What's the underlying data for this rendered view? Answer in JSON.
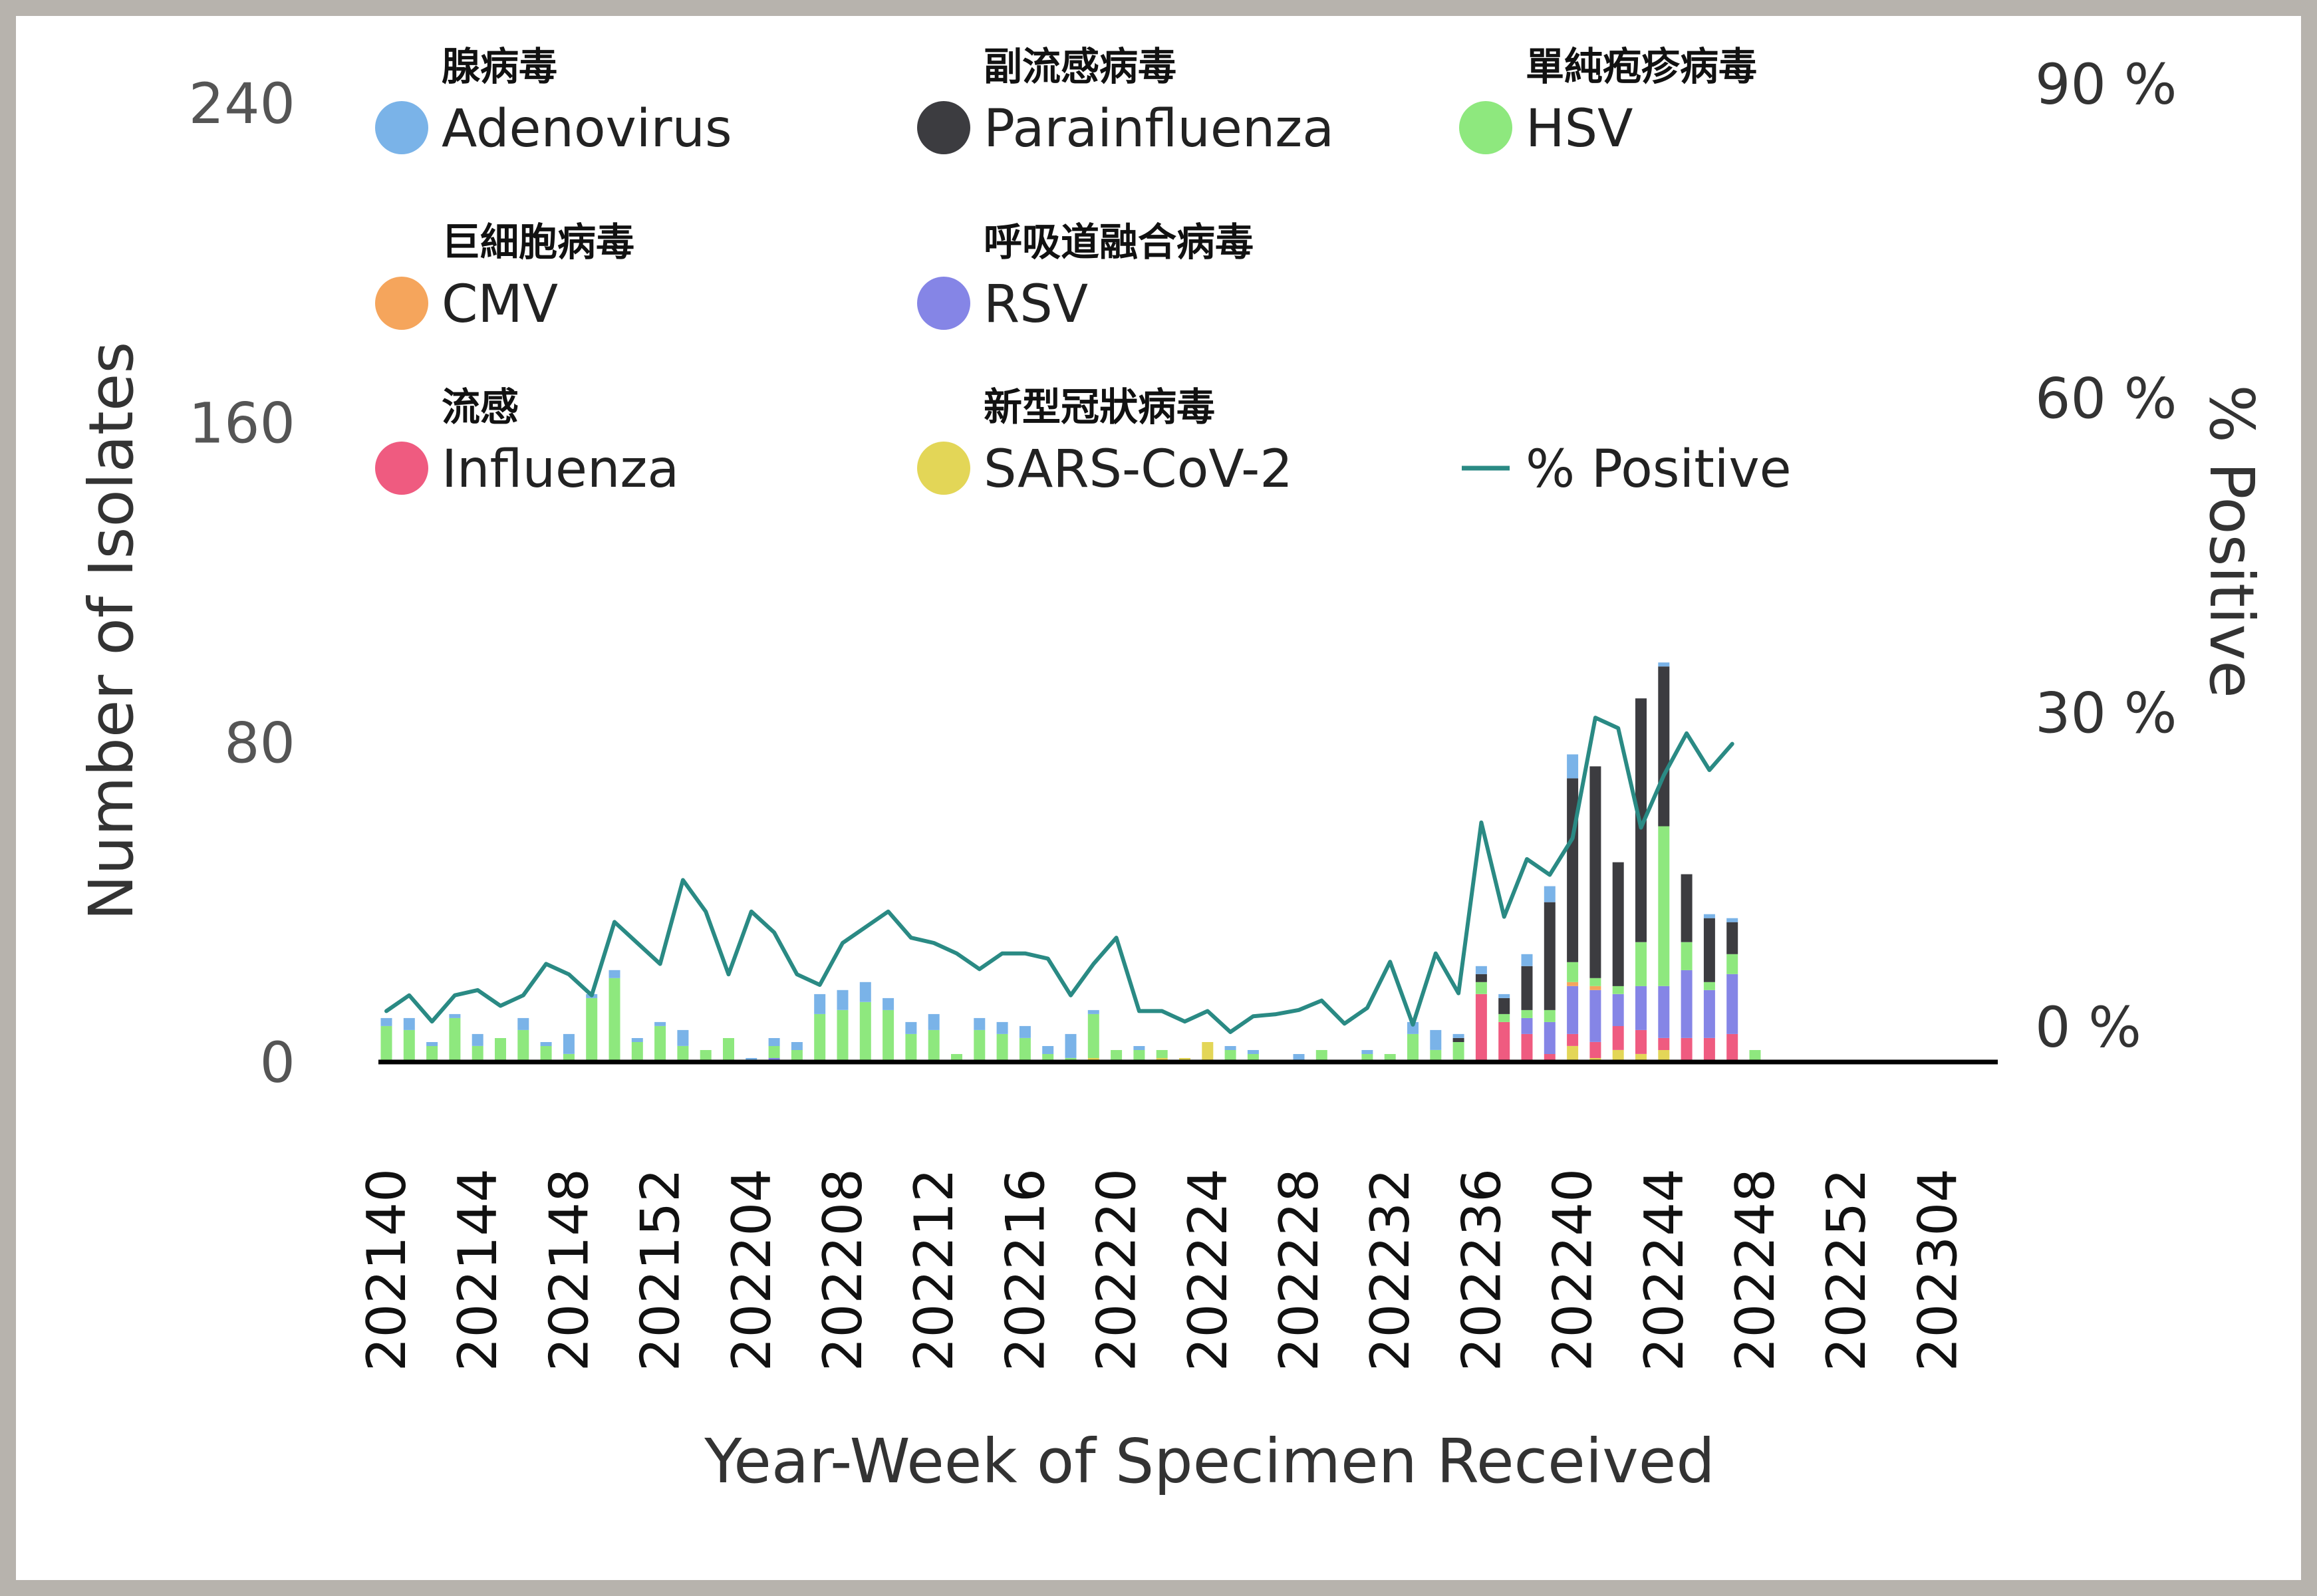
{
  "chart_data": {
    "type": "bar",
    "stacked": true,
    "xlabel": "Year-Week of Specimen Received",
    "ylabel": "Number of Isolates",
    "y2label": "% Positive",
    "ylim": [
      0,
      240
    ],
    "y2lim": [
      0,
      90
    ],
    "yticks": [
      "0",
      "80",
      "160",
      "240"
    ],
    "y2ticks": [
      "0 %",
      "30 %",
      "60 %",
      "90 %"
    ],
    "xticks": [
      "202140",
      "202144",
      "202148",
      "202152",
      "202204",
      "202208",
      "202212",
      "202216",
      "202220",
      "202224",
      "202228",
      "202232",
      "202236",
      "202240",
      "202244",
      "202248",
      "202252",
      "202304"
    ],
    "x": [
      "202140",
      "202141",
      "202142",
      "202143",
      "202144",
      "202145",
      "202146",
      "202147",
      "202148",
      "202149",
      "202150",
      "202151",
      "202152",
      "202201",
      "202202",
      "202203",
      "202204",
      "202205",
      "202206",
      "202207",
      "202208",
      "202209",
      "202210",
      "202211",
      "202212",
      "202213",
      "202214",
      "202215",
      "202216",
      "202217",
      "202218",
      "202219",
      "202220",
      "202221",
      "202222",
      "202223",
      "202224",
      "202225",
      "202226",
      "202227",
      "202228",
      "202229",
      "202230",
      "202231",
      "202232",
      "202233",
      "202234",
      "202235",
      "202236",
      "202237",
      "202238",
      "202239",
      "202240",
      "202241",
      "202242",
      "202243",
      "202244",
      "202245",
      "202246",
      "202247",
      "202248",
      "202249",
      "202250",
      "202251",
      "202252",
      "202301",
      "202302",
      "202303",
      "202304",
      "202305"
    ],
    "legend": [
      {
        "zh": "腺病毒",
        "en": "Adenovirus",
        "color": "#7ab3e8"
      },
      {
        "zh": "副流感病毒",
        "en": "Parainfluenza",
        "color": "#3c3c40"
      },
      {
        "zh": "單純疱疹病毒",
        "en": "HSV",
        "color": "#8ee87e"
      },
      {
        "zh": "巨細胞病毒",
        "en": "CMV",
        "color": "#f5a55c"
      },
      {
        "zh": "呼吸道融合病毒",
        "en": "RSV",
        "color": "#8585e6"
      },
      {
        "zh": "流感",
        "en": "Influenza",
        "color": "#ef5b80"
      },
      {
        "zh": "新型冠狀病毒",
        "en": "SARS-CoV-2",
        "color": "#e3d657"
      },
      {
        "zh": "",
        "en": "% Positive",
        "color": "#2a8a84"
      }
    ],
    "series": [
      {
        "name": "SARS-CoV-2",
        "color": "#e3d657",
        "values": [
          0,
          0,
          0,
          0,
          0,
          0,
          0,
          0,
          0,
          0,
          0,
          0,
          0,
          0,
          0,
          0,
          0,
          0,
          0,
          0,
          0,
          0,
          0,
          0,
          0,
          0,
          0,
          0,
          0,
          0,
          0,
          1,
          0,
          0,
          1,
          1,
          5,
          0,
          0,
          0,
          0,
          0,
          0,
          0,
          0,
          0,
          0,
          0,
          0,
          0,
          0,
          0,
          4,
          1,
          3,
          2,
          3,
          0,
          0,
          0,
          0,
          0,
          0,
          0,
          0,
          0,
          0,
          0,
          0,
          0
        ]
      },
      {
        "name": "Influenza",
        "color": "#ef5b80",
        "values": [
          0,
          0,
          0,
          0,
          0,
          0,
          0,
          0,
          0,
          0,
          0,
          0,
          0,
          0,
          0,
          0,
          0,
          0,
          0,
          0,
          0,
          0,
          0,
          0,
          0,
          0,
          0,
          0,
          0,
          0,
          0,
          0,
          0,
          0,
          0,
          0,
          0,
          0,
          0,
          0,
          0,
          0,
          0,
          0,
          0,
          0,
          0,
          0,
          17,
          10,
          7,
          2,
          3,
          4,
          6,
          6,
          3,
          6,
          6,
          7,
          0,
          0,
          0,
          0,
          0,
          0,
          0,
          0,
          0,
          0
        ]
      },
      {
        "name": "RSV",
        "color": "#8585e6",
        "values": [
          0,
          0,
          0,
          0,
          0,
          0,
          0,
          0,
          0,
          0,
          0,
          0,
          0,
          0,
          0,
          0,
          0,
          1,
          0,
          0,
          0,
          0,
          0,
          0,
          0,
          0,
          0,
          0,
          0,
          0,
          0,
          0,
          0,
          0,
          0,
          0,
          0,
          0,
          0,
          0,
          0,
          0,
          0,
          0,
          0,
          0,
          0,
          0,
          0,
          0,
          4,
          8,
          12,
          13,
          8,
          11,
          13,
          17,
          12,
          15,
          0,
          0,
          0,
          0,
          0,
          0,
          0,
          0,
          0,
          0
        ]
      },
      {
        "name": "CMV",
        "color": "#f5a55c",
        "values": [
          0,
          0,
          0,
          0,
          0,
          0,
          0,
          0,
          0,
          0,
          0,
          0,
          0,
          0,
          0,
          0,
          0,
          0,
          0,
          0,
          0,
          0,
          0,
          0,
          0,
          0,
          0,
          0,
          0,
          0,
          0,
          0,
          0,
          0,
          0,
          0,
          0,
          0,
          0,
          0,
          0,
          0,
          0,
          0,
          0,
          0,
          0,
          0,
          0,
          0,
          0,
          0,
          1,
          1,
          0,
          0,
          0,
          0,
          0,
          0,
          0,
          0,
          0,
          0,
          0,
          0,
          0,
          0,
          0,
          0
        ]
      },
      {
        "name": "HSV",
        "color": "#8ee87e",
        "values": [
          9,
          8,
          4,
          11,
          4,
          6,
          8,
          4,
          2,
          16,
          21,
          5,
          9,
          4,
          3,
          6,
          0,
          3,
          3,
          12,
          13,
          15,
          13,
          7,
          8,
          2,
          8,
          7,
          6,
          2,
          1,
          11,
          3,
          3,
          2,
          0,
          0,
          3,
          2,
          0,
          0,
          3,
          0,
          2,
          2,
          7,
          3,
          5,
          3,
          2,
          2,
          3,
          5,
          2,
          2,
          11,
          40,
          7,
          2,
          5,
          3,
          0,
          0,
          0,
          0,
          0,
          0,
          0,
          0,
          0
        ]
      },
      {
        "name": "Parainfluenza",
        "color": "#3c3c40",
        "values": [
          0,
          0,
          0,
          0,
          0,
          0,
          0,
          0,
          0,
          0,
          0,
          0,
          0,
          0,
          0,
          0,
          0,
          0,
          0,
          0,
          0,
          0,
          0,
          0,
          0,
          0,
          0,
          0,
          0,
          0,
          0,
          0,
          0,
          0,
          0,
          0,
          0,
          0,
          0,
          0,
          0,
          0,
          0,
          0,
          0,
          0,
          0,
          1,
          2,
          4,
          11,
          27,
          46,
          53,
          31,
          61,
          40,
          17,
          16,
          8,
          0,
          0,
          0,
          0,
          0,
          0,
          0,
          0,
          0,
          0
        ]
      },
      {
        "name": "Adenovirus",
        "color": "#7ab3e8",
        "values": [
          2,
          3,
          1,
          1,
          3,
          0,
          3,
          1,
          5,
          1,
          2,
          1,
          1,
          4,
          0,
          0,
          1,
          2,
          2,
          5,
          5,
          5,
          3,
          3,
          4,
          0,
          3,
          3,
          3,
          2,
          6,
          1,
          0,
          1,
          0,
          0,
          0,
          1,
          1,
          0,
          2,
          0,
          0,
          1,
          0,
          3,
          5,
          1,
          2,
          1,
          3,
          4,
          6,
          0,
          0,
          0,
          1,
          0,
          1,
          1,
          0,
          0,
          0,
          0,
          0,
          0,
          0,
          0,
          0,
          0
        ]
      }
    ],
    "line": {
      "name": "% Positive",
      "color": "#2a8a84",
      "axis": "right",
      "values": [
        1.5,
        3,
        0.5,
        3,
        3.5,
        2,
        3,
        6,
        5,
        3,
        10,
        8,
        6,
        14,
        11,
        5,
        11,
        9,
        5,
        4,
        8,
        9.5,
        11,
        8.5,
        8,
        7,
        5.5,
        7,
        7,
        6.5,
        3,
        6,
        8.5,
        1.5,
        1.5,
        0.5,
        1.5,
        -0.5,
        1,
        1.2,
        1.6,
        2.5,
        0.3,
        1.8,
        6.2,
        0.2,
        7,
        3.2,
        19.5,
        10.5,
        16,
        14.5,
        18,
        29.5,
        28.5,
        19,
        24,
        28,
        24.5,
        27
      ]
    }
  }
}
